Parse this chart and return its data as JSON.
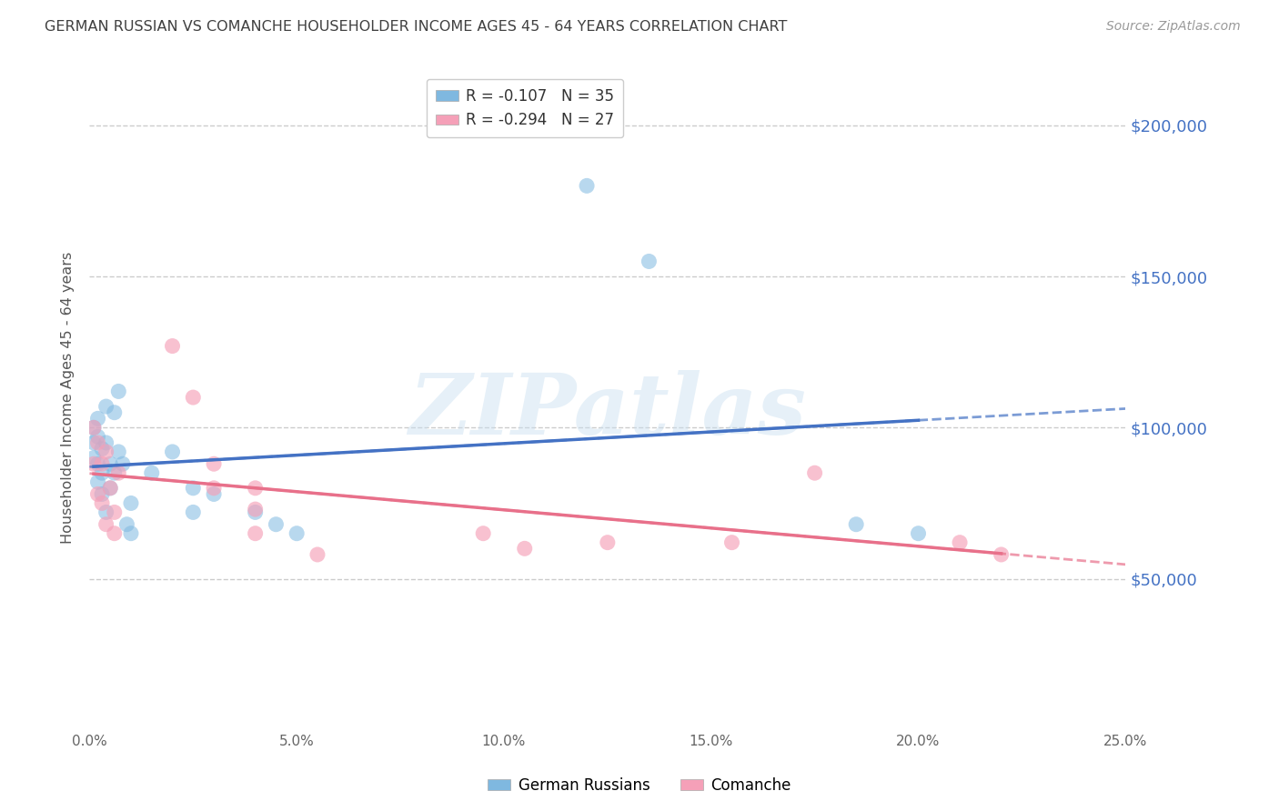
{
  "title": "GERMAN RUSSIAN VS COMANCHE HOUSEHOLDER INCOME AGES 45 - 64 YEARS CORRELATION CHART",
  "source": "Source: ZipAtlas.com",
  "ylabel": "Householder Income Ages 45 - 64 years",
  "xlabel_ticks": [
    "0.0%",
    "5.0%",
    "10.0%",
    "15.0%",
    "20.0%",
    "25.0%"
  ],
  "xlabel_vals": [
    0.0,
    0.05,
    0.1,
    0.15,
    0.2,
    0.25
  ],
  "ytick_vals": [
    50000,
    100000,
    150000,
    200000
  ],
  "ytick_labels_right": [
    "$50,000",
    "$100,000",
    "$150,000",
    "$200,000"
  ],
  "xlim": [
    0.0,
    0.25
  ],
  "ylim": [
    0,
    220000
  ],
  "watermark": "ZIPatlas",
  "gr_color": "#7fb8e0",
  "com_color": "#f5a0b8",
  "gr_line_color": "#4472c4",
  "com_line_color": "#e8708a",
  "background_color": "#ffffff",
  "grid_color": "#cccccc",
  "right_label_color": "#4472c4",
  "title_color": "#404040",
  "source_color": "#999999",
  "legend_gr_label": "R = -0.107   N = 35",
  "legend_com_label": "R = -0.294   N = 27",
  "bottom_legend_gr": "German Russians",
  "bottom_legend_com": "Comanche",
  "german_russian_x": [
    0.001,
    0.001,
    0.001,
    0.002,
    0.002,
    0.002,
    0.002,
    0.003,
    0.003,
    0.003,
    0.004,
    0.004,
    0.004,
    0.005,
    0.005,
    0.006,
    0.006,
    0.007,
    0.007,
    0.008,
    0.009,
    0.01,
    0.01,
    0.015,
    0.02,
    0.025,
    0.025,
    0.03,
    0.04,
    0.045,
    0.05,
    0.12,
    0.135,
    0.185,
    0.2
  ],
  "german_russian_y": [
    100000,
    95000,
    90000,
    103000,
    97000,
    88000,
    82000,
    93000,
    85000,
    78000,
    107000,
    95000,
    72000,
    88000,
    80000,
    105000,
    85000,
    112000,
    92000,
    88000,
    68000,
    75000,
    65000,
    85000,
    92000,
    80000,
    72000,
    78000,
    72000,
    68000,
    65000,
    180000,
    155000,
    68000,
    65000
  ],
  "comanche_x": [
    0.001,
    0.001,
    0.002,
    0.002,
    0.003,
    0.003,
    0.004,
    0.004,
    0.005,
    0.006,
    0.006,
    0.007,
    0.02,
    0.025,
    0.03,
    0.03,
    0.04,
    0.04,
    0.04,
    0.055,
    0.095,
    0.105,
    0.125,
    0.155,
    0.175,
    0.21,
    0.22
  ],
  "comanche_y": [
    100000,
    88000,
    95000,
    78000,
    88000,
    75000,
    92000,
    68000,
    80000,
    72000,
    65000,
    85000,
    127000,
    110000,
    88000,
    80000,
    80000,
    73000,
    65000,
    58000,
    65000,
    60000,
    62000,
    62000,
    85000,
    62000,
    58000
  ]
}
